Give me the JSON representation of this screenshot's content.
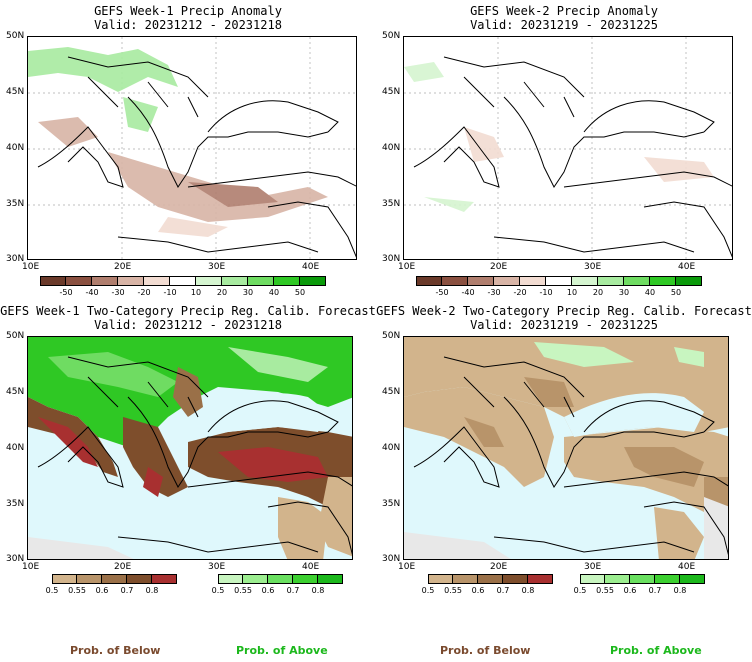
{
  "panels": [
    {
      "title": "GEFS Week-1 Precip Anomaly",
      "valid": "Valid: 20231212 - 20231218"
    },
    {
      "title": "GEFS Week-2 Precip Anomaly",
      "valid": "Valid: 20231219 - 20231225"
    },
    {
      "title": "GEFS Week-1 Two-Category Precip Reg. Calib. Forecast",
      "valid": "Valid: 20231212 - 20231218"
    },
    {
      "title": "GEFS Week-2 Two-Category Precip Reg. Calib. Forecast",
      "valid": "Valid: 20231219 - 20231225"
    }
  ],
  "axes": {
    "lat_labels": [
      "50N",
      "45N",
      "40N",
      "35N",
      "30N"
    ],
    "lon_labels": [
      "10E",
      "20E",
      "30E",
      "40E"
    ]
  },
  "anomaly_colorbar": {
    "ticks": [
      "-50",
      "-40",
      "-30",
      "-20",
      "-10",
      "10",
      "20",
      "30",
      "40",
      "50"
    ],
    "colors": [
      "#6b3a2a",
      "#8a5040",
      "#b07e6e",
      "#d8b4a6",
      "#f2dcd2",
      "#ffffff",
      "#d5f5d0",
      "#a8eba0",
      "#6fdc62",
      "#2fc824",
      "#0a9a0a"
    ]
  },
  "prob_below_colorbar": {
    "ticks": [
      "0.5",
      "0.55",
      "0.6",
      "0.7",
      "0.8"
    ],
    "colors": [
      "#d2b48c",
      "#b8946a",
      "#9a7048",
      "#7e4e2c",
      "#a83030"
    ]
  },
  "prob_above_colorbar": {
    "ticks": [
      "0.5",
      "0.55",
      "0.6",
      "0.7",
      "0.8"
    ],
    "colors": [
      "#c8f5c0",
      "#9cee90",
      "#6ae060",
      "#3cd030",
      "#1cb81c"
    ]
  },
  "footer": {
    "left_below": "Prob. of Below",
    "left_above": "Prob. of Above",
    "right_below": "Prob. of Below",
    "right_above": "Prob. of Above"
  }
}
